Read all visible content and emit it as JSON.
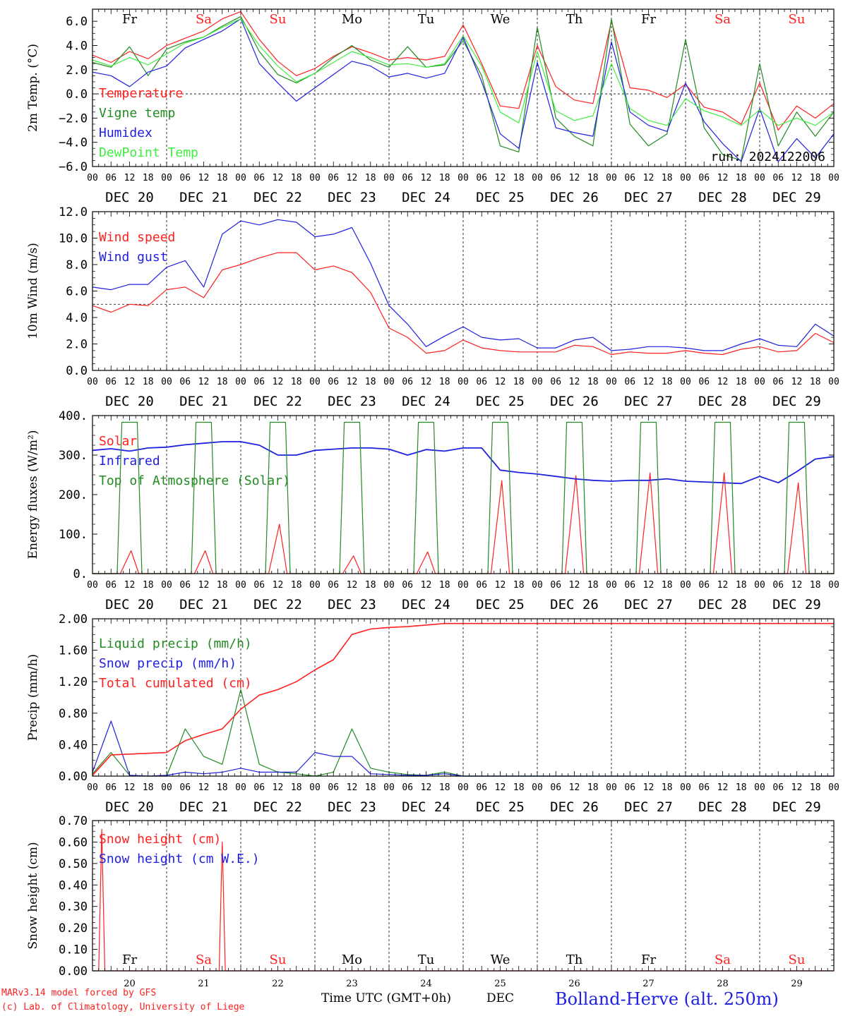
{
  "footer": {
    "model": "MARv3.14 model forced by GFS",
    "copyright": "(c) Lab. of Climatology, University of Liege",
    "xlabel": "Time UTC (GMT+0h)",
    "month": "DEC",
    "station": "Bolland-Herve (alt. 250m)"
  },
  "days": [
    {
      "dow": "Fr",
      "date": "DEC 20",
      "num": "20",
      "weekend": false
    },
    {
      "dow": "Sa",
      "date": "DEC 21",
      "num": "21",
      "weekend": true
    },
    {
      "dow": "Su",
      "date": "DEC 22",
      "num": "22",
      "weekend": true
    },
    {
      "dow": "Mo",
      "date": "DEC 23",
      "num": "23",
      "weekend": false
    },
    {
      "dow": "Tu",
      "date": "DEC 24",
      "num": "24",
      "weekend": false
    },
    {
      "dow": "We",
      "date": "DEC 25",
      "num": "25",
      "weekend": false
    },
    {
      "dow": "Th",
      "date": "DEC 26",
      "num": "26",
      "weekend": false
    },
    {
      "dow": "Fr",
      "date": "DEC 27",
      "num": "27",
      "weekend": false
    },
    {
      "dow": "Sa",
      "date": "DEC 28",
      "num": "28",
      "weekend": true
    },
    {
      "dow": "Su",
      "date": "DEC 29",
      "num": "29",
      "weekend": true
    }
  ],
  "hour_ticks": [
    "00",
    "06",
    "12",
    "18"
  ],
  "colors": {
    "red": "#ff2020",
    "green": "#228b22",
    "blue": "#2020e0",
    "lightgreen": "#40ee40",
    "daycolor_weekend": "#ff2020"
  },
  "chart_data": [
    {
      "type": "line",
      "ylabel": "2m Temp. (°C)",
      "ylim": [
        -6,
        7
      ],
      "yticks": [
        "6.0",
        "4.0",
        "2.0",
        "0.0",
        "−2.0",
        "−4.0",
        "−6.0"
      ],
      "ytick_values": [
        6,
        4,
        2,
        0,
        -2,
        -4,
        -6
      ],
      "dashed_y": 0,
      "annotation": "run: 2024122006",
      "x_hours": [
        0,
        6,
        12,
        18,
        24,
        30,
        36,
        42,
        48,
        54,
        60,
        66,
        72,
        78,
        84,
        90,
        96,
        102,
        108,
        114,
        120,
        126,
        132,
        138,
        144,
        150,
        156,
        162,
        168,
        174,
        180,
        186,
        192,
        198,
        204,
        210,
        216,
        222,
        228,
        234,
        240
      ],
      "series": [
        {
          "name": "Temperature",
          "color": "#ff2020",
          "values": [
            3.2,
            2.6,
            3.5,
            2.9,
            4.0,
            4.6,
            5.2,
            6.2,
            6.8,
            4.5,
            2.7,
            1.5,
            2.1,
            3.1,
            3.9,
            3.4,
            2.8,
            3.0,
            2.8,
            3.1,
            5.7,
            2.5,
            -1.0,
            -1.2,
            4.0,
            0.6,
            -0.5,
            -0.8,
            6.0,
            0.5,
            0.3,
            -0.3,
            0.8,
            -1.1,
            -1.5,
            -2.5,
            0.9,
            -3.0,
            -1.0,
            -2.0,
            -0.8
          ]
        },
        {
          "name": "Vigne temp",
          "color": "#228b22",
          "values": [
            2.6,
            2.2,
            3.9,
            1.5,
            3.7,
            4.3,
            4.7,
            5.6,
            6.4,
            3.5,
            1.6,
            0.9,
            1.7,
            3.0,
            4.0,
            2.8,
            2.2,
            3.9,
            2.2,
            2.4,
            4.4,
            1.5,
            -4.3,
            -4.8,
            5.5,
            -2.0,
            -3.5,
            -4.3,
            6.2,
            -2.5,
            -4.3,
            -3.3,
            4.5,
            -2.8,
            -5.0,
            -5.5,
            2.5,
            -4.3,
            -1.5,
            -3.5,
            -1.5
          ]
        },
        {
          "name": "Humidex",
          "color": "#2020e0",
          "values": [
            1.8,
            1.5,
            0.6,
            1.8,
            2.3,
            3.8,
            4.5,
            5.2,
            6.2,
            2.5,
            0.9,
            -0.6,
            0.5,
            1.6,
            2.7,
            2.3,
            1.4,
            1.7,
            1.3,
            1.7,
            4.7,
            1.0,
            -3.3,
            -4.5,
            2.6,
            -2.8,
            -3.2,
            -3.5,
            4.3,
            -1.5,
            -2.6,
            -3.1,
            0.9,
            -2.3,
            -4.1,
            -5.6,
            -1.2,
            -5.6,
            -3.7,
            -5.3,
            -3.3
          ]
        },
        {
          "name": "DewPoint Temp",
          "color": "#40ee40",
          "values": [
            2.8,
            2.3,
            3.0,
            2.4,
            3.3,
            4.2,
            4.7,
            5.5,
            6.2,
            4.0,
            2.3,
            1.0,
            1.7,
            2.6,
            3.5,
            3.0,
            2.4,
            2.5,
            2.2,
            2.5,
            4.8,
            2.3,
            -1.5,
            -2.4,
            3.5,
            -1.4,
            -2.2,
            -1.8,
            2.5,
            -1.2,
            -2.2,
            -2.6,
            -0.4,
            -1.4,
            -1.9,
            -2.6,
            -1.3,
            -2.6,
            -2.0,
            -2.6,
            -1.5
          ]
        }
      ]
    },
    {
      "type": "line",
      "ylabel": "10m Wind (m/s)",
      "ylim": [
        0,
        12
      ],
      "yticks": [
        "12.0",
        "10.0",
        "8.0",
        "6.0",
        "4.0",
        "2.0",
        "0.0"
      ],
      "ytick_values": [
        12,
        10,
        8,
        6,
        4,
        2,
        0
      ],
      "dashed_y": 5,
      "x_hours": [
        0,
        6,
        12,
        18,
        24,
        30,
        36,
        42,
        48,
        54,
        60,
        66,
        72,
        78,
        84,
        90,
        96,
        102,
        108,
        114,
        120,
        126,
        132,
        138,
        144,
        150,
        156,
        162,
        168,
        174,
        180,
        186,
        192,
        198,
        204,
        210,
        216,
        222,
        228,
        234,
        240
      ],
      "series": [
        {
          "name": "Wind speed",
          "color": "#ff2020",
          "values": [
            4.9,
            4.4,
            5.0,
            4.9,
            6.1,
            6.3,
            5.5,
            7.6,
            8.0,
            8.5,
            8.9,
            8.9,
            7.6,
            7.9,
            7.4,
            5.9,
            3.2,
            2.5,
            1.3,
            1.5,
            2.3,
            1.7,
            1.5,
            1.4,
            1.4,
            1.4,
            1.9,
            1.8,
            1.2,
            1.4,
            1.3,
            1.3,
            1.5,
            1.3,
            1.2,
            1.6,
            1.8,
            1.4,
            1.5,
            2.8,
            2.1
          ]
        },
        {
          "name": "Wind gust",
          "color": "#2020e0",
          "values": [
            6.3,
            6.1,
            6.5,
            6.5,
            7.8,
            8.3,
            6.3,
            10.3,
            11.3,
            11.0,
            11.4,
            11.2,
            10.1,
            10.3,
            10.8,
            8.1,
            4.9,
            3.5,
            1.8,
            2.6,
            3.3,
            2.5,
            2.3,
            2.4,
            1.7,
            1.7,
            2.3,
            2.5,
            1.5,
            1.6,
            1.8,
            1.8,
            1.7,
            1.5,
            1.5,
            2.0,
            2.4,
            1.9,
            1.8,
            3.5,
            2.6
          ]
        }
      ]
    },
    {
      "type": "line",
      "ylabel": "Energy fluxes (W/m²)",
      "ylim": [
        0,
        400
      ],
      "yticks": [
        "400.",
        "300.",
        "200.",
        "100.",
        "0."
      ],
      "ytick_values": [
        400,
        300,
        200,
        100,
        0
      ],
      "x_hours": [
        0,
        6,
        12,
        18,
        24,
        30,
        36,
        42,
        48,
        54,
        60,
        66,
        72,
        78,
        84,
        90,
        96,
        102,
        108,
        114,
        120,
        126,
        132,
        138,
        144,
        150,
        156,
        162,
        168,
        174,
        180,
        186,
        192,
        198,
        204,
        210,
        216,
        222,
        228,
        234,
        240
      ],
      "series": [
        {
          "name": "Solar",
          "color": "#ff2020",
          "peaks": [
            58,
            58,
            125,
            45,
            55,
            235,
            248,
            255,
            255,
            230
          ]
        },
        {
          "name": "Infrared",
          "color": "#2020e0",
          "values": [
            312,
            316,
            310,
            318,
            320,
            326,
            330,
            334,
            334,
            325,
            300,
            300,
            312,
            315,
            318,
            318,
            315,
            300,
            314,
            310,
            318,
            318,
            262,
            256,
            252,
            246,
            240,
            236,
            234,
            236,
            236,
            240,
            234,
            232,
            230,
            228,
            246,
            230,
            258,
            290,
            296
          ]
        },
        {
          "name": "Top of Atmosphere (Solar)",
          "color": "#228b22",
          "peaks": [
            383,
            383,
            383,
            383,
            383,
            383,
            383,
            383,
            383,
            383
          ]
        }
      ]
    },
    {
      "type": "line",
      "ylabel": "Precip (mm/h)",
      "ylim": [
        0,
        2
      ],
      "yticks": [
        "2.00",
        "1.60",
        "1.20",
        "0.80",
        "0.40",
        "0.00"
      ],
      "ytick_values": [
        2.0,
        1.6,
        1.2,
        0.8,
        0.4,
        0.0
      ],
      "x_hours": [
        0,
        6,
        12,
        18,
        24,
        30,
        36,
        42,
        48,
        54,
        60,
        66,
        72,
        78,
        84,
        90,
        96,
        102,
        108,
        114,
        120,
        126,
        132,
        138,
        144,
        150,
        156,
        162,
        168,
        174,
        180,
        186,
        192,
        198,
        204,
        210,
        216,
        222,
        228,
        234,
        240
      ],
      "series": [
        {
          "name": "Liquid precip (mm/h)",
          "color": "#228b22",
          "values": [
            0.03,
            0.3,
            0.01,
            0.0,
            0.0,
            0.6,
            0.25,
            0.15,
            1.1,
            0.15,
            0.05,
            0.03,
            0.0,
            0.05,
            0.6,
            0.1,
            0.05,
            0.02,
            0.01,
            0.05,
            0.0,
            0,
            0,
            0,
            0,
            0,
            0,
            0,
            0,
            0,
            0,
            0,
            0,
            0,
            0,
            0,
            0,
            0,
            0,
            0,
            0
          ]
        },
        {
          "name": "Snow precip (mm/h)",
          "color": "#2020e0",
          "values": [
            0.05,
            0.7,
            0.01,
            0.0,
            0.01,
            0.05,
            0.03,
            0.05,
            0.1,
            0.05,
            0.05,
            0.05,
            0.3,
            0.25,
            0.25,
            0.03,
            0.02,
            0.01,
            0.01,
            0.03,
            0.0,
            0,
            0,
            0,
            0,
            0,
            0,
            0,
            0,
            0,
            0,
            0,
            0,
            0,
            0,
            0,
            0,
            0,
            0,
            0,
            0
          ]
        },
        {
          "name": "Total cumulated (cm)",
          "color": "#ff2020",
          "values": [
            0.01,
            0.27,
            0.28,
            0.29,
            0.3,
            0.45,
            0.53,
            0.6,
            0.85,
            1.03,
            1.1,
            1.2,
            1.35,
            1.48,
            1.8,
            1.87,
            1.89,
            1.9,
            1.92,
            1.94,
            1.94,
            1.94,
            1.94,
            1.94,
            1.94,
            1.94,
            1.94,
            1.94,
            1.94,
            1.94,
            1.94,
            1.94,
            1.94,
            1.94,
            1.94,
            1.94,
            1.94,
            1.94,
            1.94,
            1.94,
            1.94
          ]
        }
      ]
    },
    {
      "type": "line",
      "ylabel": "Snow height (cm)",
      "ylim": [
        0,
        0.7
      ],
      "yticks": [
        "0.70",
        "0.60",
        "0.50",
        "0.40",
        "0.30",
        "0.20",
        "0.10",
        "0.00"
      ],
      "ytick_values": [
        0.7,
        0.6,
        0.5,
        0.4,
        0.3,
        0.2,
        0.1,
        0.0
      ],
      "x_hours": [
        0,
        2,
        3,
        4,
        5,
        40,
        41,
        42,
        43,
        44,
        240
      ],
      "series": [
        {
          "name": "Snow height (cm)",
          "color": "#ff2020",
          "values": [
            0,
            0,
            0.66,
            0,
            0,
            0,
            0,
            0.6,
            0,
            0,
            0
          ]
        },
        {
          "name": "Snow height (cm W.E.)",
          "color": "#2020e0",
          "values": []
        }
      ]
    }
  ]
}
